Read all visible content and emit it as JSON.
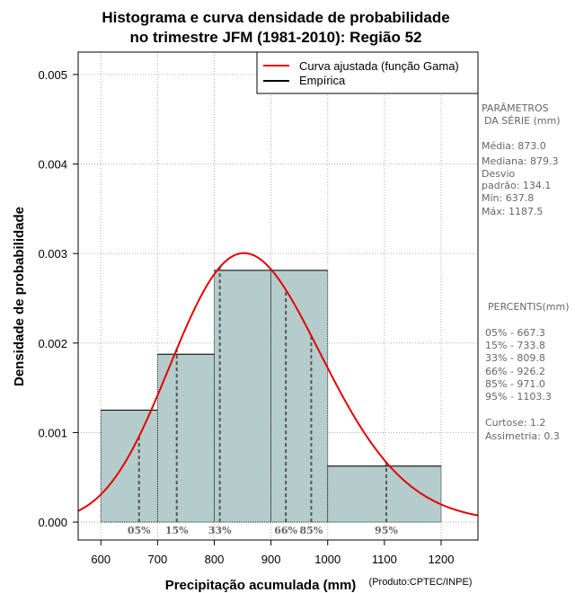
{
  "chart_data": {
    "type": "histogram",
    "title_line1": "Histograma e curva densidade de probabilidade",
    "title_line2": "no trimestre JFM (1981-2010): Região 52",
    "xlabel": "Precipitação acumulada (mm)",
    "ylabel": "Densidade de probabilidade",
    "producer": "(Produto:CPTEC/INPE)",
    "xlim": [
      560,
      1265
    ],
    "ylim": [
      -0.0002,
      0.00525
    ],
    "xticks": [
      600,
      700,
      800,
      900,
      1000,
      1100,
      1200
    ],
    "yticks": [
      0.0,
      0.001,
      0.002,
      0.003,
      0.004,
      0.005
    ],
    "ytick_labels": [
      "0.000",
      "0.001",
      "0.002",
      "0.003",
      "0.004",
      "0.005"
    ],
    "grid": true,
    "bins": [
      {
        "from": 600,
        "to": 700,
        "density": 0.00125
      },
      {
        "from": 700,
        "to": 800,
        "density": 0.001875
      },
      {
        "from": 800,
        "to": 900,
        "density": 0.0028125
      },
      {
        "from": 900,
        "to": 1000,
        "density": 0.0028125
      },
      {
        "from": 1000,
        "to": 1200,
        "density": 0.000625
      }
    ],
    "bar_color": "#b4cccc",
    "curve_color": "#e60000",
    "fitted_curve": {
      "distribution": "Gamma",
      "mean": 873.0,
      "sd": 134.1
    },
    "percentiles": [
      {
        "label": "05%",
        "value": 667.3
      },
      {
        "label": "15%",
        "value": 733.8
      },
      {
        "label": "33%",
        "value": 809.8
      },
      {
        "label": "66%",
        "value": 926.2
      },
      {
        "label": "85%",
        "value": 971.0
      },
      {
        "label": "95%",
        "value": 1103.3
      }
    ],
    "legend": {
      "position": "top-right",
      "entries": [
        {
          "label": "Curva ajustada (função Gama)",
          "color": "#e60000"
        },
        {
          "label": "Empírica",
          "color": "#000000"
        }
      ]
    }
  },
  "side_panel": {
    "params_title1": "PARÂMETROS",
    "params_title2": "DA SÉRIE (mm)",
    "media": "Média:  873.0",
    "mediana": "Mediana:  879.3",
    "desvio1": "Desvio",
    "desvio2": "padrão:  134.1",
    "min": "Mín:  637.8",
    "max": "Máx:  1187.5",
    "percentis_title": "PERCENTIS(mm)",
    "p05": "05% -  667.3",
    "p15": "15% -  733.8",
    "p33": "33% -  809.8",
    "p66": "66% -  926.2",
    "p85": "85% -  971.0",
    "p95": "95% -  1103.3",
    "curtose": "Curtose:  1.2",
    "assimetria": "Assimetria:  0.3"
  }
}
